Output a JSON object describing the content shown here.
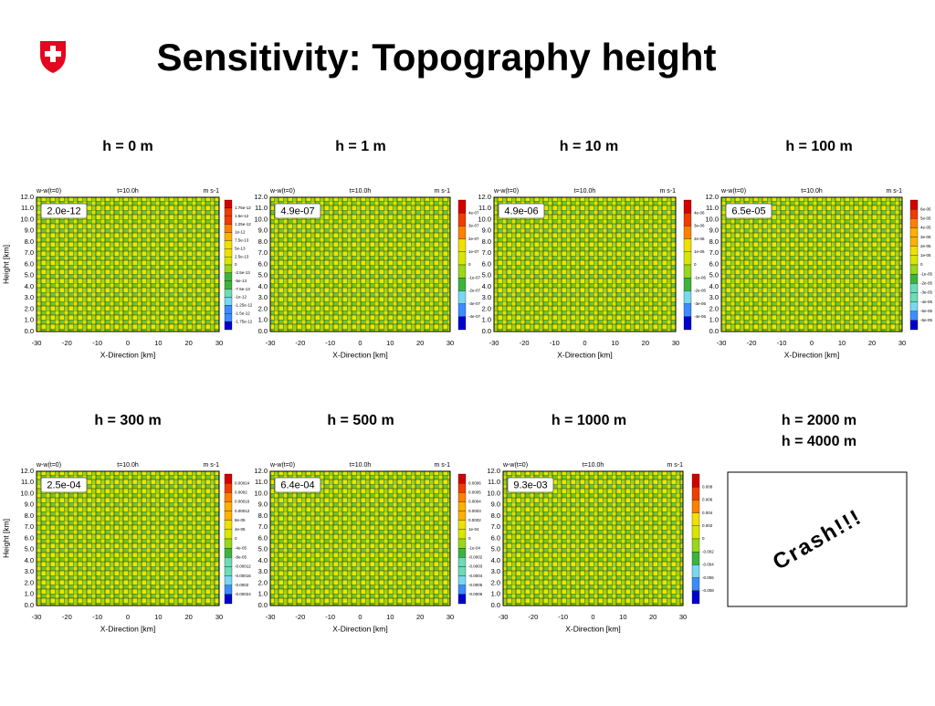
{
  "title": "Sensitivity: Topography height",
  "axes": {
    "title_left": "w-w(t=0)",
    "title_center": "t=10.0h",
    "title_right": "m s-1",
    "xlabel": "X-Direction [km]",
    "ylabel": "Height [km]",
    "xticks": [
      "-30",
      "-20",
      "-10",
      "0",
      "10",
      "20",
      "30"
    ],
    "yticks": [
      "12.0",
      "11.0",
      "10.0",
      "9.0",
      "8.0",
      "7.0",
      "6.0",
      "5.0",
      "4.0",
      "3.0",
      "2.0",
      "1.0",
      "0.0"
    ]
  },
  "panels": [
    {
      "heading": "h = 0 m",
      "amplitude": "2.0e-12",
      "colorbar": [
        "1.75e-12",
        "1.5e-12",
        "1.25e-12",
        "1e-12",
        "7.5e-13",
        "5e-13",
        "2.5e-13",
        "0",
        "-2.5e-13",
        "-5e-13",
        "-7.5e-13",
        "-1e-12",
        "-1.25e-12",
        "-1.5e-12",
        "-1.75e-12"
      ]
    },
    {
      "heading": "h = 1 m",
      "amplitude": "4.9e-07",
      "colorbar": [
        "4e-07",
        "3e-07",
        "2e-07",
        "1e-07",
        "0",
        "-1e-07",
        "-2e-07",
        "-3e-07",
        "-4e-07"
      ]
    },
    {
      "heading": "h = 10 m",
      "amplitude": "4.9e-06",
      "colorbar": [
        "4e-06",
        "3e-06",
        "2e-06",
        "1e-06",
        "0",
        "-1e-06",
        "-2e-06",
        "-3e-06",
        "-4e-06"
      ]
    },
    {
      "heading": "h = 100 m",
      "amplitude": "6.5e-05",
      "colorbar": [
        "6e-05",
        "5e-05",
        "4e-05",
        "3e-05",
        "2e-05",
        "1e-05",
        "0",
        "-1e-05",
        "-2e-05",
        "-3e-05",
        "-4e-05",
        "-5e-05",
        "-6e-05"
      ]
    },
    {
      "heading": "h = 300 m",
      "amplitude": "2.5e-04",
      "colorbar": [
        "0.00024",
        "0.0002",
        "0.00016",
        "0.00012",
        "8e-05",
        "4e-05",
        "0",
        "-4e-05",
        "-8e-05",
        "-0.00012",
        "-0.00016",
        "-0.0002",
        "-0.00024"
      ]
    },
    {
      "heading": "h = 500 m",
      "amplitude": "6.4e-04",
      "colorbar": [
        "0.0006",
        "0.0005",
        "0.0004",
        "0.0003",
        "0.0002",
        "1e-04",
        "0",
        "-1e-04",
        "-0.0002",
        "-0.0003",
        "-0.0004",
        "-0.0005",
        "-0.0006"
      ]
    },
    {
      "heading": "h = 1000 m",
      "amplitude": "9.3e-03",
      "colorbar": [
        "0.008",
        "0.006",
        "0.004",
        "0.002",
        "0",
        "-0.002",
        "-0.004",
        "-0.006",
        "-0.008"
      ]
    }
  ],
  "crash": {
    "headings": [
      "h = 2000 m",
      "h = 4000 m"
    ],
    "text": "Crash!!!"
  }
}
